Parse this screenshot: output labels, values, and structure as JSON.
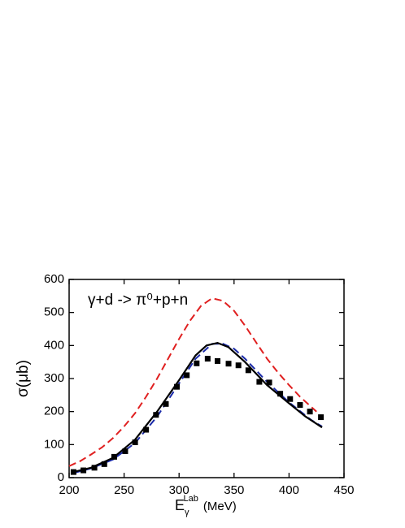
{
  "chart_data": {
    "type": "line",
    "annotation": "γ+d -> π⁰+p+n",
    "x_label": {
      "base": "E",
      "sub": "γ",
      "sup": "Lab",
      "unit": "(MeV)"
    },
    "y_label": "σ(μb)",
    "xlim": [
      200,
      450
    ],
    "xticks": [
      200,
      250,
      300,
      350,
      400,
      450
    ],
    "ylim": [
      0,
      600
    ],
    "yticks": [
      0,
      100,
      200,
      300,
      400,
      500,
      600
    ],
    "series": [
      {
        "style": "dashed",
        "color": "#e02020",
        "x": [
          200,
          210,
          220,
          230,
          240,
          250,
          260,
          270,
          280,
          290,
          300,
          310,
          320,
          330,
          340,
          350,
          360,
          370,
          380,
          390,
          400,
          410,
          420,
          425
        ],
        "values": [
          35,
          50,
          70,
          92,
          120,
          155,
          195,
          245,
          300,
          360,
          420,
          475,
          520,
          543,
          535,
          505,
          460,
          410,
          360,
          318,
          280,
          245,
          215,
          200
        ]
      },
      {
        "style": "dashed",
        "color": "#1a2aa8",
        "x": [
          205,
          220,
          240,
          260,
          280,
          300,
          315,
          330,
          340,
          350,
          360,
          380,
          400,
          420,
          430
        ],
        "values": [
          15,
          28,
          55,
          105,
          185,
          285,
          360,
          405,
          405,
          390,
          360,
          290,
          228,
          175,
          155
        ]
      },
      {
        "style": "solid",
        "color": "#000000",
        "x": [
          205,
          220,
          240,
          260,
          280,
          300,
          315,
          325,
          335,
          345,
          360,
          380,
          400,
          415,
          430
        ],
        "values": [
          18,
          30,
          60,
          115,
          200,
          295,
          370,
          400,
          408,
          395,
          350,
          280,
          225,
          185,
          152
        ]
      },
      {
        "style": "markers",
        "color": "#000000",
        "x": [
          204,
          213,
          223,
          232,
          241,
          251,
          260,
          270,
          279,
          288,
          298,
          307,
          316,
          326,
          335,
          345,
          354,
          363,
          373,
          382,
          392,
          401,
          410,
          419,
          429
        ],
        "values": [
          17,
          22,
          30,
          41,
          63,
          80,
          107,
          145,
          190,
          223,
          275,
          310,
          346,
          360,
          353,
          345,
          340,
          325,
          290,
          288,
          254,
          238,
          220,
          200,
          183
        ],
        "errors": [
          8,
          8,
          8,
          8,
          8,
          8,
          8,
          8,
          8,
          8,
          8,
          8,
          8,
          8,
          8,
          8,
          8,
          8,
          8,
          8,
          8,
          8,
          8,
          8,
          8
        ]
      }
    ]
  }
}
